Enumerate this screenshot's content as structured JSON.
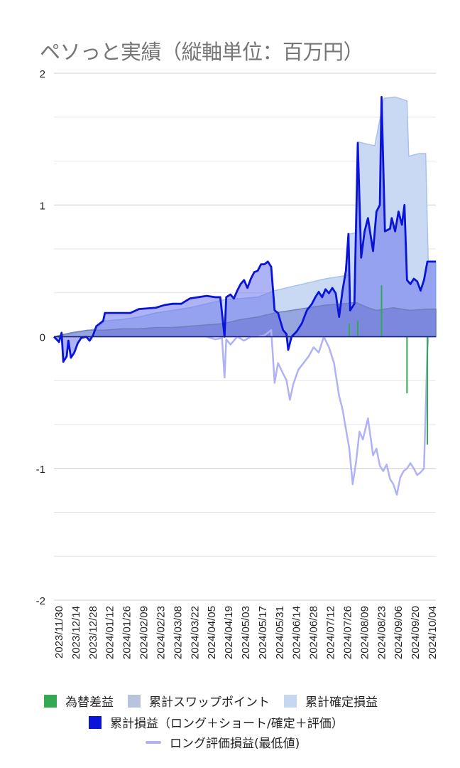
{
  "chart_data": {
    "type": "area",
    "title": "ペソっと実績（縦軸単位：百万円）",
    "ylim": [
      -2,
      2
    ],
    "yticks": [
      {
        "value": 2,
        "label": "2"
      },
      {
        "value": 1,
        "label": "1"
      },
      {
        "value": 0,
        "label": "0"
      },
      {
        "value": -1,
        "label": "-1"
      },
      {
        "value": -2,
        "label": "-2"
      }
    ],
    "gridlines": [
      2,
      1.667,
      1.333,
      1,
      0.667,
      0.333,
      0,
      -0.333,
      -0.667,
      -1,
      -1.333,
      -1.667,
      -2
    ],
    "x_tick_labels": [
      "2023/11/30",
      "2023/12/14",
      "2023/12/28",
      "2024/01/12",
      "2024/01/26",
      "2024/02/09",
      "2024/02/23",
      "2024/03/08",
      "2024/03/22",
      "2024/04/05",
      "2024/04/19",
      "2024/05/03",
      "2024/05/17",
      "2024/05/31",
      "2024/06/14",
      "2024/06/28",
      "2024/07/12",
      "2024/07/26",
      "2024/08/09",
      "2024/08/23",
      "2024/09/06",
      "2024/09/20",
      "2024/10/04"
    ],
    "x_range": [
      0,
      22.5
    ],
    "series": [
      {
        "name": "為替差益",
        "kind": "bar",
        "color": "#34a853",
        "points": [
          [
            17.4,
            0.1
          ],
          [
            17.9,
            0.12
          ],
          [
            19.3,
            0.39
          ],
          [
            20.8,
            -0.43
          ],
          [
            22.0,
            -0.82
          ]
        ]
      },
      {
        "name": "累計スワップポイント",
        "kind": "area",
        "color": "#b7c4db",
        "points": [
          [
            0,
            0
          ],
          [
            1,
            0.03
          ],
          [
            2,
            0.05
          ],
          [
            3,
            0.05
          ],
          [
            4,
            0.06
          ],
          [
            5,
            0.06
          ],
          [
            6,
            0.07
          ],
          [
            7,
            0.07
          ],
          [
            8,
            0.08
          ],
          [
            9,
            0.09
          ],
          [
            10,
            0.1
          ],
          [
            11,
            0.13
          ],
          [
            12,
            0.15
          ],
          [
            13,
            0.18
          ],
          [
            14,
            0.2
          ],
          [
            15,
            0.22
          ],
          [
            16,
            0.24
          ],
          [
            17,
            0.25
          ],
          [
            17.8,
            0.26
          ],
          [
            18.5,
            0.22
          ],
          [
            19,
            0.2
          ],
          [
            20,
            0.22
          ],
          [
            21,
            0.2
          ],
          [
            22,
            0.21
          ],
          [
            22.5,
            0.21
          ]
        ]
      },
      {
        "name": "累計確定損益",
        "kind": "area",
        "color": "#c6d7f2",
        "points": [
          [
            0,
            0
          ],
          [
            2.5,
            0.06
          ],
          [
            3,
            0.12
          ],
          [
            4,
            0.13
          ],
          [
            5,
            0.15
          ],
          [
            6,
            0.18
          ],
          [
            7,
            0.2
          ],
          [
            8,
            0.22
          ],
          [
            9,
            0.25
          ],
          [
            10,
            0.28
          ],
          [
            11,
            0.29
          ],
          [
            12,
            0.3
          ],
          [
            13,
            0.35
          ],
          [
            14,
            0.38
          ],
          [
            15,
            0.41
          ],
          [
            16,
            0.44
          ],
          [
            17,
            0.46
          ],
          [
            17.35,
            0.47
          ],
          [
            17.4,
            0.78
          ],
          [
            17.9,
            0.79
          ],
          [
            17.9,
            1.48
          ],
          [
            18.5,
            1.46
          ],
          [
            18.9,
            1.45
          ],
          [
            19.4,
            1.78
          ],
          [
            19.45,
            1.81
          ],
          [
            20.1,
            1.82
          ],
          [
            20.8,
            1.79
          ],
          [
            20.9,
            1.37
          ],
          [
            21.5,
            1.39
          ],
          [
            21.9,
            1.39
          ],
          [
            22.05,
            0.57
          ],
          [
            22.5,
            0.57
          ]
        ]
      },
      {
        "name": "累計損益（ロング＋ショート/確定＋評価）",
        "kind": "line-area",
        "color": "#0a14d8",
        "points": [
          [
            0,
            0
          ],
          [
            0.3,
            -0.04
          ],
          [
            0.45,
            0.03
          ],
          [
            0.55,
            -0.19
          ],
          [
            0.75,
            -0.15
          ],
          [
            0.85,
            -0.03
          ],
          [
            1.0,
            -0.16
          ],
          [
            1.2,
            -0.12
          ],
          [
            1.4,
            -0.05
          ],
          [
            1.6,
            -0.01
          ],
          [
            1.9,
            0.0
          ],
          [
            2.1,
            -0.03
          ],
          [
            2.3,
            0.01
          ],
          [
            2.5,
            0.08
          ],
          [
            2.7,
            0.1
          ],
          [
            2.9,
            0.12
          ],
          [
            3.0,
            0.18
          ],
          [
            4.0,
            0.18
          ],
          [
            4.5,
            0.18
          ],
          [
            5.0,
            0.21
          ],
          [
            6.0,
            0.22
          ],
          [
            6.5,
            0.24
          ],
          [
            7.0,
            0.25
          ],
          [
            7.5,
            0.25
          ],
          [
            8.0,
            0.29
          ],
          [
            8.5,
            0.3
          ],
          [
            9.0,
            0.31
          ],
          [
            9.5,
            0.3
          ],
          [
            9.8,
            0.3
          ],
          [
            10.05,
            0.0
          ],
          [
            10.15,
            0.3
          ],
          [
            10.4,
            0.32
          ],
          [
            10.6,
            0.29
          ],
          [
            10.8,
            0.35
          ],
          [
            11.0,
            0.4
          ],
          [
            11.2,
            0.43
          ],
          [
            11.4,
            0.37
          ],
          [
            11.6,
            0.44
          ],
          [
            11.8,
            0.49
          ],
          [
            12.0,
            0.5
          ],
          [
            12.2,
            0.55
          ],
          [
            12.4,
            0.55
          ],
          [
            12.6,
            0.57
          ],
          [
            12.8,
            0.53
          ],
          [
            13.0,
            0.2
          ],
          [
            13.2,
            0.18
          ],
          [
            13.5,
            0.05
          ],
          [
            13.7,
            0.02
          ],
          [
            13.8,
            -0.1
          ],
          [
            14.0,
            0.0
          ],
          [
            14.3,
            0.04
          ],
          [
            14.6,
            0.1
          ],
          [
            14.9,
            0.2
          ],
          [
            15.2,
            0.25
          ],
          [
            15.4,
            0.3
          ],
          [
            15.6,
            0.34
          ],
          [
            15.8,
            0.3
          ],
          [
            16.0,
            0.36
          ],
          [
            16.2,
            0.33
          ],
          [
            16.4,
            0.37
          ],
          [
            16.6,
            0.33
          ],
          [
            16.8,
            0.15
          ],
          [
            17.0,
            0.35
          ],
          [
            17.2,
            0.5
          ],
          [
            17.35,
            0.78
          ],
          [
            17.45,
            0.2
          ],
          [
            17.7,
            0.25
          ],
          [
            17.9,
            1.47
          ],
          [
            18.1,
            0.6
          ],
          [
            18.3,
            0.8
          ],
          [
            18.5,
            0.9
          ],
          [
            18.8,
            0.65
          ],
          [
            19.0,
            0.95
          ],
          [
            19.2,
            1.0
          ],
          [
            19.3,
            1.82
          ],
          [
            19.5,
            0.8
          ],
          [
            19.8,
            0.82
          ],
          [
            19.9,
            0.9
          ],
          [
            20.1,
            0.8
          ],
          [
            20.3,
            0.95
          ],
          [
            20.5,
            0.85
          ],
          [
            20.65,
            1.0
          ],
          [
            20.8,
            0.43
          ],
          [
            21.0,
            0.4
          ],
          [
            21.2,
            0.44
          ],
          [
            21.4,
            0.42
          ],
          [
            21.6,
            0.35
          ],
          [
            21.8,
            0.43
          ],
          [
            22.0,
            0.57
          ],
          [
            22.5,
            0.57
          ]
        ]
      },
      {
        "name": "ロング評価損益(最低値)",
        "kind": "line",
        "color": "#b0b2f5",
        "points": [
          [
            9.0,
            0.0
          ],
          [
            9.5,
            -0.02
          ],
          [
            9.9,
            -0.01
          ],
          [
            10.05,
            -0.31
          ],
          [
            10.15,
            -0.02
          ],
          [
            10.4,
            -0.06
          ],
          [
            10.8,
            0.0
          ],
          [
            11.2,
            -0.03
          ],
          [
            11.6,
            0.0
          ],
          [
            12.0,
            0.0
          ],
          [
            12.4,
            0.01
          ],
          [
            12.8,
            0.05
          ],
          [
            13.0,
            -0.35
          ],
          [
            13.2,
            -0.2
          ],
          [
            13.5,
            -0.28
          ],
          [
            13.7,
            -0.33
          ],
          [
            13.9,
            -0.48
          ],
          [
            14.1,
            -0.36
          ],
          [
            14.4,
            -0.25
          ],
          [
            14.7,
            -0.2
          ],
          [
            15.0,
            -0.15
          ],
          [
            15.3,
            -0.08
          ],
          [
            15.6,
            -0.12
          ],
          [
            15.9,
            0.0
          ],
          [
            16.2,
            -0.08
          ],
          [
            16.5,
            -0.2
          ],
          [
            16.8,
            -0.45
          ],
          [
            17.0,
            -0.55
          ],
          [
            17.2,
            -0.7
          ],
          [
            17.4,
            -0.85
          ],
          [
            17.6,
            -1.12
          ],
          [
            17.8,
            -0.95
          ],
          [
            18.0,
            -0.72
          ],
          [
            18.2,
            -0.78
          ],
          [
            18.5,
            -0.62
          ],
          [
            18.8,
            -0.9
          ],
          [
            19.0,
            -0.85
          ],
          [
            19.2,
            -0.98
          ],
          [
            19.4,
            -1.02
          ],
          [
            19.6,
            -0.97
          ],
          [
            19.8,
            -1.08
          ],
          [
            20.0,
            -1.12
          ],
          [
            20.2,
            -1.2
          ],
          [
            20.4,
            -1.07
          ],
          [
            20.6,
            -1.02
          ],
          [
            20.8,
            -1.0
          ],
          [
            21.0,
            -0.96
          ],
          [
            21.2,
            -1.0
          ],
          [
            21.4,
            -1.05
          ],
          [
            21.6,
            -1.03
          ],
          [
            21.8,
            -1.0
          ],
          [
            22.0,
            -0.1
          ],
          [
            22.05,
            0.0
          ]
        ]
      }
    ],
    "legend": [
      {
        "label": "為替差益",
        "color": "#34a853",
        "shape": "square"
      },
      {
        "label": "累計スワップポイント",
        "color": "#b7c4db",
        "shape": "square"
      },
      {
        "label": "累計確定損益",
        "color": "#c6d7f2",
        "shape": "square"
      },
      {
        "label": "累計損益（ロング＋ショート/確定＋評価）",
        "color": "#0a14d8",
        "shape": "square"
      },
      {
        "label": "ロング評価損益(最低値)",
        "color": "#b0b2f5",
        "shape": "line"
      }
    ],
    "legend_position": "bottom",
    "grid": true
  }
}
